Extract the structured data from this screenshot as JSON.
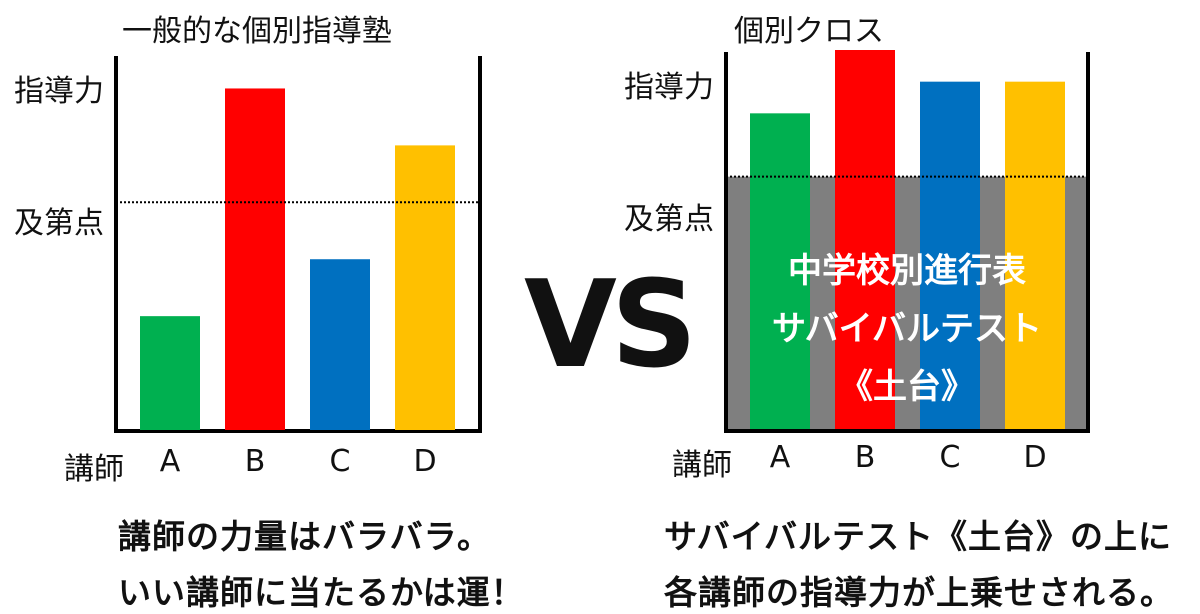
{
  "chart_data": [
    {
      "type": "bar",
      "title": "一般的な個別指導塾",
      "ylabel": "指導力",
      "xlabel": "講師",
      "threshold_label": "及第点",
      "threshold": 40,
      "categories": [
        "A",
        "B",
        "C",
        "D"
      ],
      "values": [
        20,
        60,
        30,
        50
      ],
      "colors": [
        "#00b050",
        "#ff0000",
        "#0070c0",
        "#ffc000"
      ],
      "ylim": [
        0,
        65
      ]
    },
    {
      "type": "bar",
      "title": "個別クロス",
      "ylabel": "指導力",
      "xlabel": "講師",
      "threshold_label": "及第点",
      "threshold": 40,
      "categories": [
        "A",
        "B",
        "C",
        "D"
      ],
      "values": [
        50,
        60,
        55,
        55
      ],
      "colors": [
        "#00b050",
        "#ff0000",
        "#0070c0",
        "#ffc000"
      ],
      "ylim": [
        0,
        60
      ],
      "foundation": {
        "lines": [
          "中学校別進行表",
          "サバイバルテスト",
          "《土台》"
        ],
        "color": "#7f7f7f"
      }
    }
  ],
  "vs_label": "VS",
  "captions": {
    "left": [
      "講師の力量はバラバラ。",
      "いい講師に当たるかは運！"
    ],
    "right": [
      "サバイバルテスト《土台》の上に",
      "各講師の指導力が上乗せされる。"
    ]
  }
}
